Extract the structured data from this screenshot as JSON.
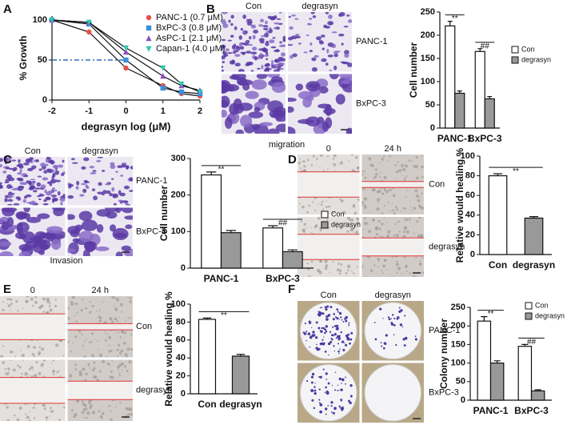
{
  "panel_letters": [
    "A",
    "B",
    "C",
    "D",
    "E",
    "F"
  ],
  "image_panels": {
    "B": {
      "columns": [
        "Con",
        "degrasyn"
      ],
      "rows": [
        "PANC-1",
        "BxPC-3"
      ],
      "caption": "migration"
    },
    "C": {
      "columns": [
        "Con",
        "degrasyn"
      ],
      "rows": [
        "PANC-1",
        "BxPC-3"
      ],
      "caption": "Invasion"
    },
    "D": {
      "columns": [
        "0",
        "24 h"
      ],
      "rows": [
        "Con",
        "degrasyn"
      ]
    },
    "E": {
      "columns": [
        "0",
        "24 h"
      ],
      "rows": [
        "Con",
        "degrasyn"
      ]
    },
    "F": {
      "columns": [
        "Con",
        "degrasyn"
      ],
      "rows": [
        "PANC-1",
        "BxPC-3"
      ]
    }
  },
  "chart_data": [
    {
      "type": "line",
      "xlabel": "degrasyn log (μM)",
      "ylabel": "% Growth",
      "x": [
        -2,
        -1,
        0,
        1,
        1.5,
        2
      ],
      "series": [
        {
          "name": "PANC-1 (0.7 μM)",
          "color": "#e8504a",
          "marker": "circle",
          "values": [
            100,
            85,
            40,
            18,
            8,
            5
          ]
        },
        {
          "name": "BxPC-3 (0.8 μM)",
          "color": "#3a8fd8",
          "marker": "square",
          "values": [
            100,
            95,
            50,
            15,
            10,
            8
          ]
        },
        {
          "name": "AsPC-1 (2.1 μM)",
          "color": "#8a4fc0",
          "marker": "triangle",
          "values": [
            100,
            97,
            60,
            30,
            18,
            12
          ]
        },
        {
          "name": "Capan-1 (4.0 μM)",
          "color": "#2ec8b0",
          "marker": "triangle-down",
          "values": [
            100,
            97,
            65,
            40,
            20,
            10
          ]
        }
      ],
      "xlim": [
        -2,
        2
      ],
      "xticks": [
        -2,
        -1,
        0,
        1,
        2
      ],
      "ylim": [
        0,
        105
      ],
      "yticks": [
        0,
        50,
        100
      ],
      "hline": 50,
      "hline_color": "#2f6fb5"
    },
    {
      "type": "bar",
      "ylabel": "Cell number",
      "categories": [
        "PANC-1",
        "BxPC-3"
      ],
      "series": [
        {
          "name": "Con",
          "color": "#ffffff",
          "values": [
            220,
            165
          ],
          "errors": [
            10,
            6
          ]
        },
        {
          "name": "degrasyn",
          "color": "#999999",
          "values": [
            75,
            63
          ],
          "errors": [
            5,
            5
          ]
        }
      ],
      "ylim": [
        0,
        250
      ],
      "yticks": [
        0,
        50,
        100,
        150,
        200,
        250
      ],
      "annotations": [
        "**",
        "##"
      ]
    },
    {
      "type": "bar",
      "ylabel": "Cell number",
      "categories": [
        "PANC-1",
        "BxPC-3"
      ],
      "series": [
        {
          "name": "Con",
          "color": "#ffffff",
          "values": [
            255,
            110
          ],
          "errors": [
            8,
            6
          ]
        },
        {
          "name": "degrasyn",
          "color": "#999999",
          "values": [
            97,
            45
          ],
          "errors": [
            6,
            5
          ]
        }
      ],
      "ylim": [
        0,
        300
      ],
      "yticks": [
        0,
        100,
        200,
        300
      ],
      "annotations": [
        "**",
        "##"
      ]
    },
    {
      "type": "bar",
      "ylabel": "Relative would healing %",
      "categories": [
        "Con",
        "degrasyn"
      ],
      "values": [
        80,
        37
      ],
      "errors": [
        2,
        1.5
      ],
      "colors": [
        "#ffffff",
        "#999999"
      ],
      "ylim": [
        0,
        100
      ],
      "yticks": [
        0,
        20,
        40,
        60,
        80,
        100
      ],
      "annotations": [
        "**"
      ]
    },
    {
      "type": "bar",
      "ylabel": "Relative would healing %",
      "categories": [
        "Con",
        "degrasyn"
      ],
      "values": [
        83,
        42
      ],
      "errors": [
        1.5,
        2
      ],
      "colors": [
        "#ffffff",
        "#999999"
      ],
      "ylim": [
        0,
        100
      ],
      "yticks": [
        0,
        20,
        40,
        60,
        80,
        100
      ],
      "annotations": [
        "**"
      ]
    },
    {
      "type": "bar",
      "ylabel": "Colony number",
      "categories": [
        "PANC-1",
        "BxPC-3"
      ],
      "series": [
        {
          "name": "Con",
          "color": "#ffffff",
          "values": [
            213,
            145
          ],
          "errors": [
            12,
            5
          ]
        },
        {
          "name": "degrasyn",
          "color": "#999999",
          "values": [
            100,
            25
          ],
          "errors": [
            6,
            3
          ]
        }
      ],
      "ylim": [
        0,
        250
      ],
      "yticks": [
        0,
        50,
        100,
        150,
        200,
        250
      ],
      "annotations": [
        "**",
        "##"
      ]
    }
  ]
}
